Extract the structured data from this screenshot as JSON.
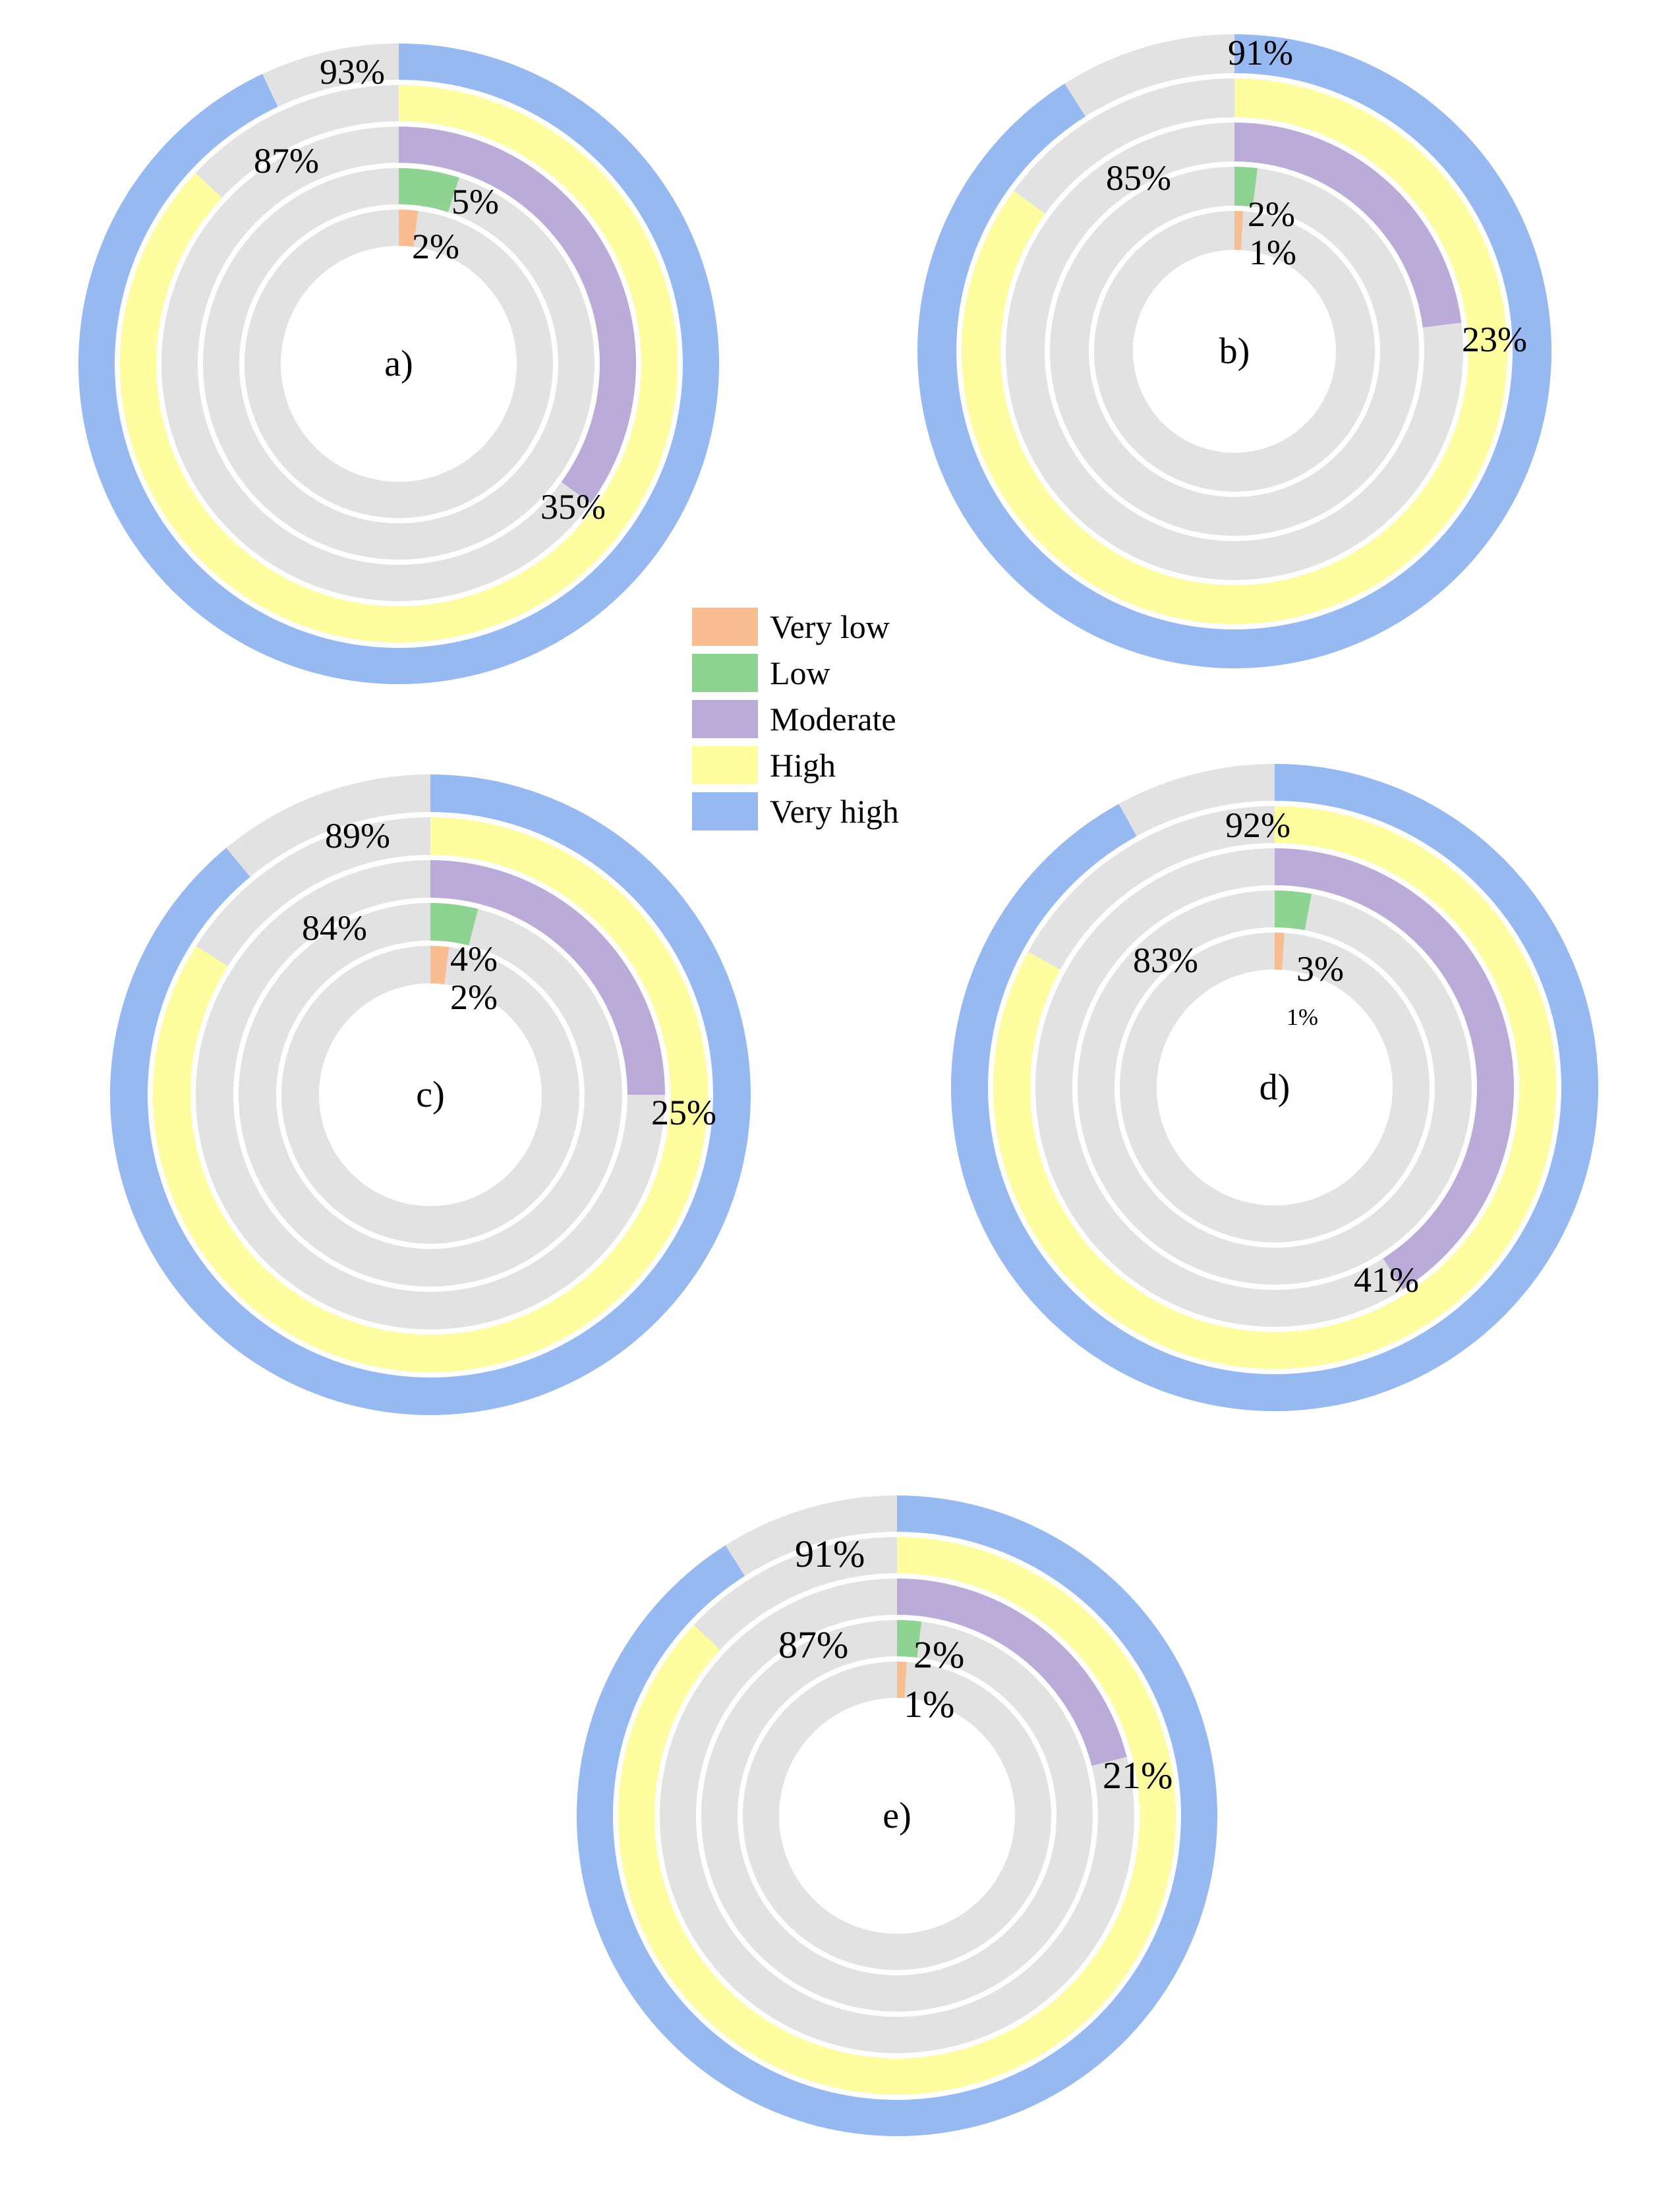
{
  "chart_data": {
    "type": "radial_bar",
    "ring_order_inner_to_outer": [
      "Very low",
      "Low",
      "Moderate",
      "High",
      "Very high"
    ],
    "legend": {
      "placement": "center",
      "entries": [
        {
          "label": "Very low",
          "color": "#F8BD91"
        },
        {
          "label": "Low",
          "color": "#8FD393"
        },
        {
          "label": "Moderate",
          "color": "#BBABD9"
        },
        {
          "label": "High",
          "color": "#FEFEA0"
        },
        {
          "label": "Very high",
          "color": "#96B9F1"
        }
      ]
    },
    "track_color": "#E2E2E2",
    "panels": [
      {
        "id": "a",
        "label": "a)",
        "values": [
          2,
          5,
          35,
          87,
          93
        ],
        "value_labels": [
          "2%",
          "5%",
          "35%",
          "87%",
          "93%"
        ]
      },
      {
        "id": "b",
        "label": "b)",
        "values": [
          1,
          2,
          23,
          85,
          91
        ],
        "value_labels": [
          "1%",
          "2%",
          "23%",
          "85%",
          "91%"
        ]
      },
      {
        "id": "c",
        "label": "c)",
        "values": [
          2,
          4,
          25,
          84,
          89
        ],
        "value_labels": [
          "2%",
          "4%",
          "25%",
          "84%",
          "89%"
        ]
      },
      {
        "id": "d",
        "label": "d)",
        "values": [
          1,
          3,
          41,
          83,
          92
        ],
        "value_labels": [
          "1%",
          "3%",
          "41%",
          "83%",
          "92%"
        ]
      },
      {
        "id": "e",
        "label": "e)",
        "values": [
          1,
          2,
          21,
          87,
          91
        ],
        "value_labels": [
          "1%",
          "2%",
          "21%",
          "87%",
          "91%"
        ]
      }
    ]
  }
}
